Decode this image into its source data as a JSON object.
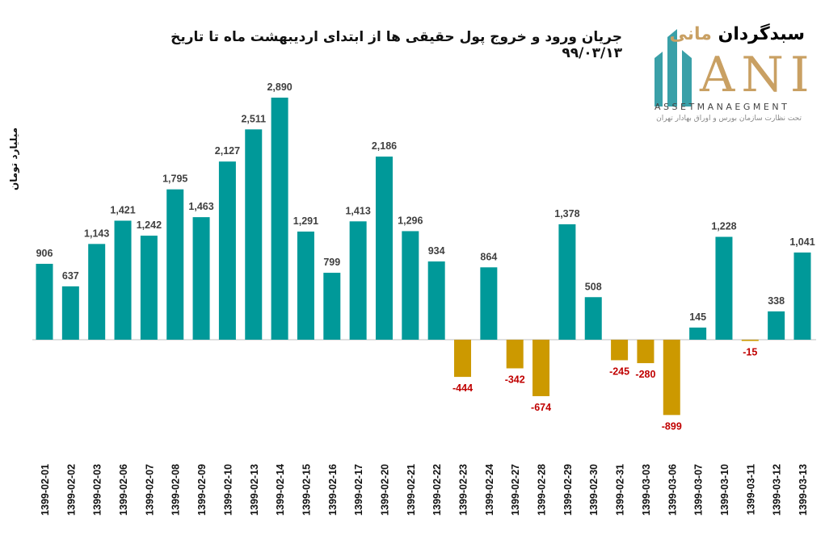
{
  "title": "جریان ورود و خروج پول حقیقی ها از ابتدای اردیبهشت ماه تا تاریخ ۹۹/۰۳/۱۳",
  "logo": {
    "name_dark": "سبدگردان",
    "name_gold": "مانی",
    "mark": "ANI",
    "english": "ASSETMANAEGMENT",
    "subtitle": "تحت نظارت سازمان بورس و اوراق بهادار تهران"
  },
  "chart_data": {
    "type": "bar",
    "title": "جریان ورود و خروج پول حقیقی ها از ابتدای اردیبهشت ماه تا تاریخ ۹۹/۰۳/۱۳",
    "ylabel": "میلیارد تومان",
    "xlabel": "",
    "categories": [
      "1399-02-01",
      "1399-02-02",
      "1399-02-03",
      "1399-02-06",
      "1399-02-07",
      "1399-02-08",
      "1399-02-09",
      "1399-02-10",
      "1399-02-13",
      "1399-02-14",
      "1399-02-15",
      "1399-02-16",
      "1399-02-17",
      "1399-02-20",
      "1399-02-21",
      "1399-02-22",
      "1399-02-23",
      "1399-02-24",
      "1399-02-27",
      "1399-02-28",
      "1399-02-29",
      "1399-02-30",
      "1399-02-31",
      "1399-03-03",
      "1399-03-06",
      "1399-03-07",
      "1399-03-10",
      "1399-03-11",
      "1399-03-12",
      "1399-03-13"
    ],
    "values": [
      906,
      637,
      1143,
      1421,
      1242,
      1795,
      1463,
      2127,
      2511,
      2890,
      1291,
      799,
      1413,
      2186,
      1296,
      934,
      -444,
      864,
      -342,
      -674,
      1378,
      508,
      -245,
      -280,
      -899,
      145,
      1228,
      -15,
      338,
      1041
    ],
    "grid": false,
    "colors": {
      "positive": "#009999",
      "negative": "#CC9900",
      "positive_label": "#404040",
      "negative_label": "#C00000"
    }
  }
}
